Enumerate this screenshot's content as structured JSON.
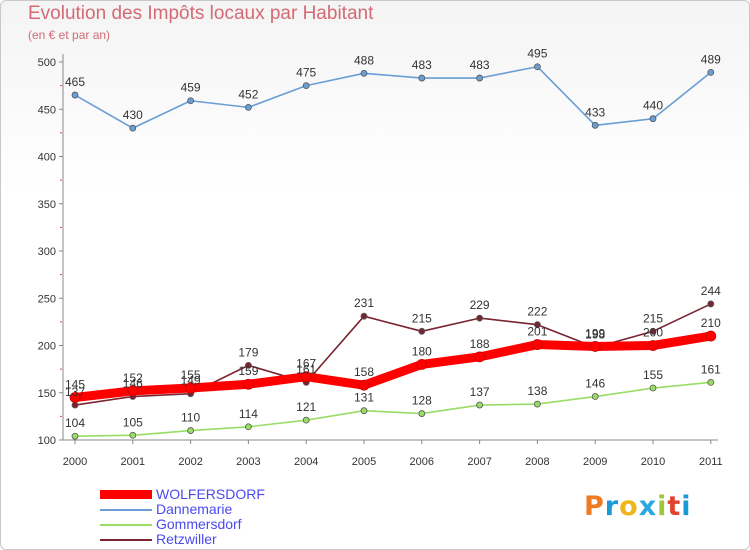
{
  "title": "Evolution des Impôts locaux par Habitant",
  "subtitle": "(en € et par an)",
  "logo": {
    "letters": [
      "P",
      "r",
      "o",
      "x",
      "i",
      "t",
      "i"
    ],
    "colors": [
      "#ee7a22",
      "#1a9ad6",
      "#f1b51c",
      "#2aa8e0",
      "#9bc83a",
      "#e0432f",
      "#1a9ad6"
    ]
  },
  "chart_data": {
    "type": "line",
    "title": "Evolution des Impôts locaux par Habitant",
    "subtitle": "(en € et par an)",
    "x": [
      "2000",
      "2001",
      "2002",
      "2003",
      "2004",
      "2005",
      "2006",
      "2007",
      "2008",
      "2009",
      "2010",
      "2011"
    ],
    "ylim": [
      100,
      500
    ],
    "yticks": [
      100,
      150,
      200,
      250,
      300,
      350,
      400,
      450,
      500
    ],
    "grid": false,
    "legend_position": "bottom-left",
    "series": [
      {
        "name": "WOLFERSDORF",
        "color": "#ff0000",
        "values": [
          145,
          152,
          155,
          159,
          167,
          158,
          180,
          188,
          201,
          199,
          200,
          210
        ]
      },
      {
        "name": "Dannemarie",
        "color": "#6a9ed4",
        "values": [
          465,
          430,
          459,
          452,
          475,
          488,
          483,
          483,
          495,
          433,
          440,
          489
        ]
      },
      {
        "name": "Gommersdorf",
        "color": "#99dd66",
        "values": [
          104,
          105,
          110,
          114,
          121,
          131,
          128,
          137,
          138,
          146,
          155,
          161
        ]
      },
      {
        "name": "Retzwiller",
        "color": "#7a2430",
        "values": [
          137,
          146,
          149,
          179,
          161,
          231,
          215,
          229,
          222,
          198,
          215,
          244
        ]
      }
    ]
  }
}
